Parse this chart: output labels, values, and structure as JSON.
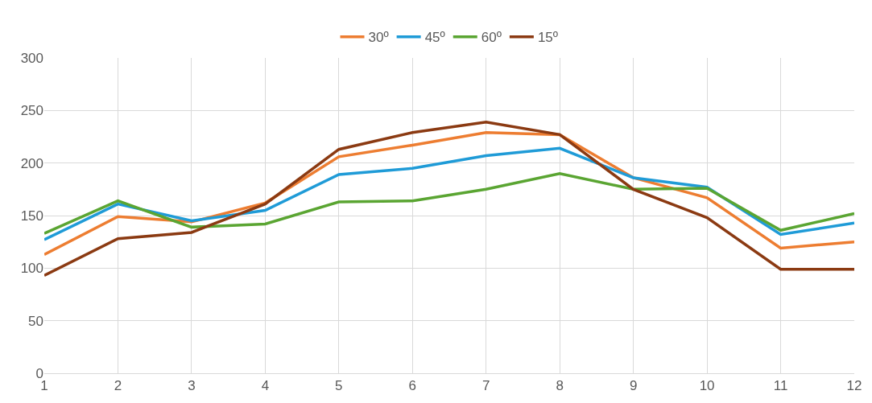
{
  "chart_data": {
    "type": "line",
    "x": [
      1,
      2,
      3,
      4,
      5,
      6,
      7,
      8,
      9,
      10,
      11,
      12
    ],
    "series": [
      {
        "name": "30º",
        "color": "#ed7d31",
        "values": [
          113,
          149,
          144,
          162,
          206,
          217,
          229,
          227,
          186,
          167,
          119,
          125
        ]
      },
      {
        "name": "45º",
        "color": "#1f9bd7",
        "values": [
          127,
          161,
          145,
          155,
          189,
          195,
          207,
          214,
          186,
          177,
          132,
          143
        ]
      },
      {
        "name": "60º",
        "color": "#5aa532",
        "values": [
          133,
          164,
          139,
          142,
          163,
          164,
          175,
          190,
          175,
          176,
          136,
          152
        ]
      },
      {
        "name": "15º",
        "color": "#8b3a12",
        "values": [
          93,
          128,
          134,
          161,
          213,
          229,
          239,
          227,
          175,
          148,
          99,
          99
        ]
      }
    ],
    "xlim": [
      1,
      12
    ],
    "xticks": [
      1,
      2,
      3,
      4,
      5,
      6,
      7,
      8,
      9,
      10,
      11,
      12
    ],
    "ylim": [
      0,
      300
    ],
    "yticks": [
      0,
      50,
      100,
      150,
      200,
      250,
      300
    ],
    "grid": true,
    "legend": "top",
    "marker": "none",
    "line_style": "solid"
  }
}
